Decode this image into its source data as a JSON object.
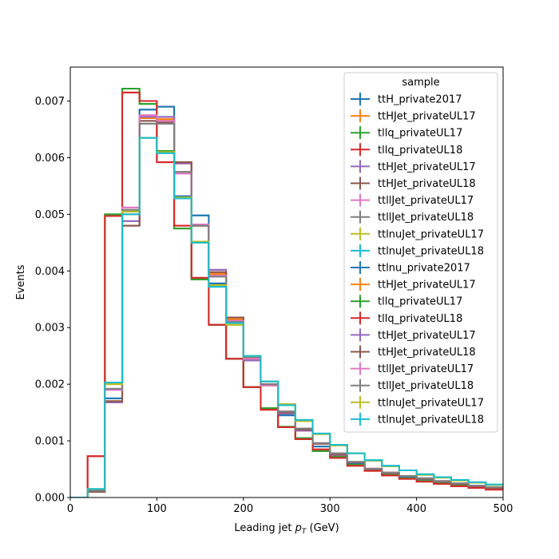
{
  "chart_data": {
    "type": "line",
    "title": "",
    "xlabel": "Leading jet  $p_T$ (GeV)",
    "xlabel_parts": {
      "prefix": "Leading jet  ",
      "symbol": "p",
      "subscript": "T",
      "suffix": " (GeV)"
    },
    "ylabel": "Events",
    "xlim": [
      0,
      500
    ],
    "ylim": [
      0,
      0.0076
    ],
    "xticks": [
      0,
      100,
      200,
      300,
      400,
      500
    ],
    "yticks": [
      "0.000",
      "0.001",
      "0.002",
      "0.003",
      "0.004",
      "0.005",
      "0.006",
      "0.007"
    ],
    "ytick_values": [
      0,
      0.001,
      0.002,
      0.003,
      0.004,
      0.005,
      0.006,
      0.007
    ],
    "grid": false,
    "legend_title": "sample",
    "legend_position": "upper-right",
    "bin_edges": [
      0,
      20,
      40,
      60,
      80,
      100,
      120,
      140,
      160,
      180,
      200,
      220,
      240,
      260,
      280,
      300,
      320,
      340,
      360,
      380,
      400,
      420,
      440,
      460,
      480,
      500
    ],
    "series": [
      {
        "name": "ttH_private2017",
        "color": "#1f77b4",
        "values": [
          0.0,
          0.00012,
          0.00175,
          0.00505,
          0.00685,
          0.0069,
          0.00532,
          0.00498,
          0.00378,
          0.00312,
          0.00248,
          0.00205,
          0.00145,
          0.0012,
          0.0009,
          0.00075,
          0.0006,
          0.0005,
          0.00042,
          0.00037,
          0.00032,
          0.00027,
          0.00023,
          0.00019,
          0.00016
        ]
      },
      {
        "name": "ttHJet_privateUL17",
        "color": "#ff7f0e",
        "values": [
          0.0,
          0.0001,
          0.0017,
          0.005,
          0.0067,
          0.00668,
          0.0059,
          0.0048,
          0.00395,
          0.00315,
          0.00245,
          0.00198,
          0.0015,
          0.00118,
          0.00095,
          0.00075,
          0.00062,
          0.0005,
          0.00043,
          0.00038,
          0.00033,
          0.00028,
          0.00024,
          0.0002,
          0.00017
        ]
      },
      {
        "name": "tllq_privateUL17",
        "color": "#2ca02c",
        "values": [
          0.0,
          0.0001,
          0.005,
          0.00722,
          0.00695,
          0.00612,
          0.00475,
          0.00385,
          0.00305,
          0.00245,
          0.00195,
          0.00158,
          0.00125,
          0.00105,
          0.00082,
          0.00072,
          0.00058,
          0.00048,
          0.0004,
          0.00034,
          0.00029,
          0.00025,
          0.00021,
          0.00018,
          0.00015
        ]
      },
      {
        "name": "tllq_privateUL18",
        "color": "#d62728",
        "values": [
          0.0,
          0.00073,
          0.00497,
          0.00715,
          0.007,
          0.00592,
          0.0048,
          0.00388,
          0.00305,
          0.00245,
          0.00195,
          0.00155,
          0.00124,
          0.00103,
          0.00085,
          0.0007,
          0.00056,
          0.00047,
          0.00039,
          0.00033,
          0.00028,
          0.00024,
          0.0002,
          0.00017,
          0.00014
        ]
      },
      {
        "name": "ttHJet_privateUL17",
        "color": "#9467bd",
        "values": [
          0.0,
          0.00011,
          0.00168,
          0.00488,
          0.00672,
          0.00672,
          0.0059,
          0.00482,
          0.00402,
          0.00312,
          0.00242,
          0.00198,
          0.00148,
          0.00118,
          0.00095,
          0.00075,
          0.00062,
          0.0005,
          0.00043,
          0.00038,
          0.00033,
          0.00028,
          0.00024,
          0.0002,
          0.00017
        ]
      },
      {
        "name": "ttHJet_privateUL18",
        "color": "#8c564b",
        "values": [
          0.0,
          0.0001,
          0.0017,
          0.0048,
          0.00665,
          0.00662,
          0.00592,
          0.0048,
          0.00398,
          0.00318,
          0.00245,
          0.002,
          0.0015,
          0.0012,
          0.00095,
          0.00076,
          0.00062,
          0.0005,
          0.00043,
          0.00038,
          0.00033,
          0.00028,
          0.00024,
          0.0002,
          0.00017
        ]
      },
      {
        "name": "ttllJet_privateUL17",
        "color": "#e377c2",
        "values": [
          0.0,
          0.00012,
          0.0019,
          0.00512,
          0.00675,
          0.00665,
          0.00572,
          0.00482,
          0.00392,
          0.00312,
          0.00245,
          0.00198,
          0.00152,
          0.00122,
          0.00096,
          0.00078,
          0.00063,
          0.00051,
          0.00044,
          0.00038,
          0.00034,
          0.00029,
          0.00025,
          0.00021,
          0.00018
        ]
      },
      {
        "name": "ttllJet_privateUL18",
        "color": "#7f7f7f",
        "values": [
          0.0,
          0.00012,
          0.00192,
          0.00508,
          0.0066,
          0.0066,
          0.00575,
          0.0048,
          0.0039,
          0.0031,
          0.00248,
          0.002,
          0.00152,
          0.00122,
          0.00096,
          0.00078,
          0.00063,
          0.00051,
          0.00044,
          0.00038,
          0.00034,
          0.00029,
          0.00025,
          0.00021,
          0.00018
        ]
      },
      {
        "name": "ttlnuJet_privateUL17",
        "color": "#bcbd22",
        "values": [
          0.0,
          0.00015,
          0.002,
          0.00505,
          0.00635,
          0.0061,
          0.0053,
          0.00452,
          0.00375,
          0.00305,
          0.0025,
          0.00205,
          0.00165,
          0.00135,
          0.00112,
          0.00092,
          0.00078,
          0.00065,
          0.00055,
          0.00048,
          0.0004,
          0.00035,
          0.0003,
          0.00026,
          0.00022
        ]
      },
      {
        "name": "ttlnuJet_privateUL18",
        "color": "#17becf",
        "values": [
          0.0,
          0.00015,
          0.00203,
          0.005,
          0.00635,
          0.00608,
          0.00528,
          0.0045,
          0.00372,
          0.00308,
          0.0025,
          0.00205,
          0.00163,
          0.00137,
          0.00113,
          0.00093,
          0.00078,
          0.00066,
          0.00056,
          0.00048,
          0.00041,
          0.00036,
          0.00031,
          0.00027,
          0.00023
        ]
      },
      {
        "name": "ttlnu_private2017",
        "color": "#1f77b4",
        "values": [
          0.0,
          0.00012,
          0.00175,
          0.00505,
          0.00685,
          0.0069,
          0.00532,
          0.00498,
          0.00378,
          0.00312,
          0.00248,
          0.00205,
          0.00145,
          0.0012,
          0.0009,
          0.00075,
          0.0006,
          0.0005,
          0.00042,
          0.00037,
          0.00032,
          0.00027,
          0.00023,
          0.00019,
          0.00016
        ]
      },
      {
        "name": "ttHJet_privateUL17",
        "color": "#ff7f0e",
        "values": [
          0.0,
          0.0001,
          0.0017,
          0.005,
          0.0067,
          0.00668,
          0.0059,
          0.0048,
          0.00395,
          0.00315,
          0.00245,
          0.00198,
          0.0015,
          0.00118,
          0.00095,
          0.00075,
          0.00062,
          0.0005,
          0.00043,
          0.00038,
          0.00033,
          0.00028,
          0.00024,
          0.0002,
          0.00017
        ]
      },
      {
        "name": "tllq_privateUL17",
        "color": "#2ca02c",
        "values": [
          0.0,
          0.0001,
          0.005,
          0.00722,
          0.00695,
          0.00612,
          0.00475,
          0.00385,
          0.00305,
          0.00245,
          0.00195,
          0.00158,
          0.00125,
          0.00105,
          0.00082,
          0.00072,
          0.00058,
          0.00048,
          0.0004,
          0.00034,
          0.00029,
          0.00025,
          0.00021,
          0.00018,
          0.00015
        ]
      },
      {
        "name": "tllq_privateUL18",
        "color": "#d62728",
        "values": [
          0.0,
          0.00073,
          0.00497,
          0.00715,
          0.007,
          0.00592,
          0.0048,
          0.00388,
          0.00305,
          0.00245,
          0.00195,
          0.00155,
          0.00124,
          0.00103,
          0.00085,
          0.0007,
          0.00056,
          0.00047,
          0.00039,
          0.00033,
          0.00028,
          0.00024,
          0.0002,
          0.00017,
          0.00014
        ]
      },
      {
        "name": "ttHJet_privateUL17",
        "color": "#9467bd",
        "values": [
          0.0,
          0.00011,
          0.00168,
          0.00488,
          0.00672,
          0.00672,
          0.0059,
          0.00482,
          0.00402,
          0.00312,
          0.00242,
          0.00198,
          0.00148,
          0.00118,
          0.00095,
          0.00075,
          0.00062,
          0.0005,
          0.00043,
          0.00038,
          0.00033,
          0.00028,
          0.00024,
          0.0002,
          0.00017
        ]
      },
      {
        "name": "ttHJet_privateUL18",
        "color": "#8c564b",
        "values": [
          0.0,
          0.0001,
          0.0017,
          0.0048,
          0.00665,
          0.00662,
          0.00592,
          0.0048,
          0.00398,
          0.00318,
          0.00245,
          0.002,
          0.0015,
          0.0012,
          0.00095,
          0.00076,
          0.00062,
          0.0005,
          0.00043,
          0.00038,
          0.00033,
          0.00028,
          0.00024,
          0.0002,
          0.00017
        ]
      },
      {
        "name": "ttllJet_privateUL17",
        "color": "#e377c2",
        "values": [
          0.0,
          0.00012,
          0.0019,
          0.00512,
          0.00675,
          0.00665,
          0.00572,
          0.00482,
          0.00392,
          0.00312,
          0.00245,
          0.00198,
          0.00152,
          0.00122,
          0.00096,
          0.00078,
          0.00063,
          0.00051,
          0.00044,
          0.00038,
          0.00034,
          0.00029,
          0.00025,
          0.00021,
          0.00018
        ]
      },
      {
        "name": "ttllJet_privateUL18",
        "color": "#7f7f7f",
        "values": [
          0.0,
          0.00012,
          0.00192,
          0.00508,
          0.0066,
          0.0066,
          0.00575,
          0.0048,
          0.0039,
          0.0031,
          0.00248,
          0.002,
          0.00152,
          0.00122,
          0.00096,
          0.00078,
          0.00063,
          0.00051,
          0.00044,
          0.00038,
          0.00034,
          0.00029,
          0.00025,
          0.00021,
          0.00018
        ]
      },
      {
        "name": "ttlnuJet_privateUL17",
        "color": "#bcbd22",
        "values": [
          0.0,
          0.00015,
          0.002,
          0.00505,
          0.00635,
          0.0061,
          0.0053,
          0.00452,
          0.00375,
          0.00305,
          0.0025,
          0.00205,
          0.00165,
          0.00135,
          0.00112,
          0.00092,
          0.00078,
          0.00065,
          0.00055,
          0.00048,
          0.0004,
          0.00035,
          0.0003,
          0.00026,
          0.00022
        ]
      },
      {
        "name": "ttlnuJet_privateUL18",
        "color": "#17becf",
        "values": [
          0.0,
          0.00015,
          0.00203,
          0.005,
          0.00635,
          0.00608,
          0.00528,
          0.0045,
          0.00372,
          0.00308,
          0.0025,
          0.00205,
          0.00163,
          0.00137,
          0.00113,
          0.00093,
          0.00078,
          0.00066,
          0.00056,
          0.00048,
          0.00041,
          0.00036,
          0.00031,
          0.00027,
          0.00023
        ]
      }
    ]
  }
}
